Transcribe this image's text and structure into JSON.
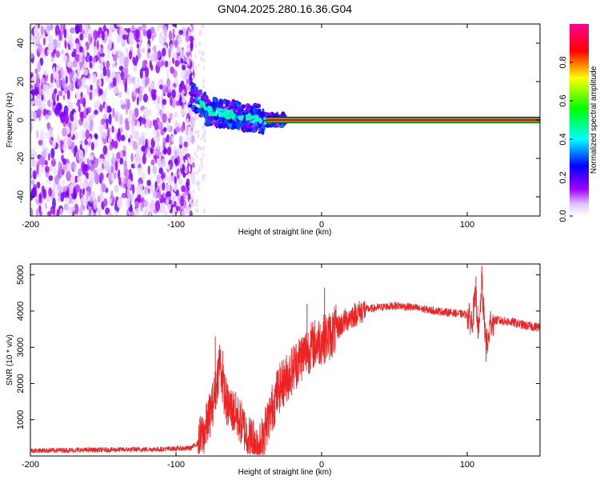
{
  "title": "GN04.2025.280.16.36.G04",
  "chart_data": [
    {
      "type": "heatmap",
      "title": "GN04.2025.280.16.36.G04",
      "xlabel": "Height of straight line (km)",
      "ylabel": "Frequency (Hz)",
      "xlim": [
        -200,
        150
      ],
      "ylim": [
        -50,
        50
      ],
      "xticks": [
        -200,
        -100,
        0,
        100
      ],
      "yticks": [
        -40,
        -20,
        0,
        20,
        40
      ],
      "colorbar": {
        "label": "Normalized spectral amplitude",
        "range": [
          0,
          1
        ],
        "ticks": [
          0.0,
          0.2,
          0.4,
          0.6,
          0.8
        ],
        "tick_labels": [
          "0.0",
          "0.2",
          "0.4",
          "0.6",
          "0.8"
        ],
        "colors": [
          "#ffffff",
          "#a000ff",
          "#0000ff",
          "#00ffff",
          "#00ff00",
          "#ffff00",
          "#ff0000",
          "#ff0090"
        ]
      },
      "regions": [
        {
          "name": "noise",
          "x_range": [
            -200,
            -88
          ],
          "freq_range": [
            -50,
            50
          ],
          "amplitude": 0.1
        },
        {
          "name": "transition",
          "x_range": [
            -88,
            -35
          ],
          "freq_center": [
            15,
            8,
            2,
            -2,
            0
          ],
          "amplitude": 0.35
        },
        {
          "name": "tone",
          "x_range": [
            -35,
            150
          ],
          "freq": 0,
          "amplitude": 0.9
        }
      ]
    },
    {
      "type": "line",
      "xlabel": "Height of straight line (km)",
      "ylabel": "SNR (10 * v/v)",
      "xlim": [
        -200,
        150
      ],
      "ylim": [
        0,
        5300
      ],
      "xticks": [
        -200,
        -100,
        0,
        100
      ],
      "yticks": [
        1000,
        2000,
        3000,
        4000,
        5000
      ],
      "color": "#ee2222",
      "series": [
        {
          "name": "SNR",
          "x": [
            -200,
            -150,
            -110,
            -90,
            -85,
            -80,
            -75,
            -72,
            -70,
            -68,
            -65,
            -62,
            -60,
            -55,
            -50,
            -45,
            -42,
            -40,
            -35,
            -30,
            -25,
            -20,
            -15,
            -10,
            -5,
            0,
            5,
            10,
            15,
            20,
            25,
            30,
            40,
            50,
            60,
            70,
            80,
            90,
            100,
            103,
            106,
            108,
            110,
            112,
            114,
            116,
            120,
            130,
            140,
            150
          ],
          "y": [
            150,
            170,
            190,
            220,
            350,
            700,
            1400,
            2000,
            2700,
            2000,
            1400,
            1300,
            1200,
            900,
            500,
            400,
            300,
            600,
            1200,
            1800,
            2100,
            2400,
            2700,
            2900,
            3100,
            3200,
            3300,
            3500,
            3700,
            3850,
            3950,
            4050,
            4100,
            4150,
            4120,
            4050,
            4000,
            3950,
            3900,
            3700,
            4400,
            3300,
            4800,
            3500,
            3000,
            3700,
            3750,
            3700,
            3600,
            3550
          ]
        }
      ],
      "spikes": [
        {
          "x": -73,
          "y": 3300
        },
        {
          "x": -68,
          "y": 2900
        },
        {
          "x": 2,
          "y": 4650
        },
        {
          "x": -10,
          "y": 4200
        },
        {
          "x": 110,
          "y": 5250
        },
        {
          "x": 113,
          "y": 2600
        },
        {
          "x": 106,
          "y": 4950
        }
      ]
    }
  ]
}
